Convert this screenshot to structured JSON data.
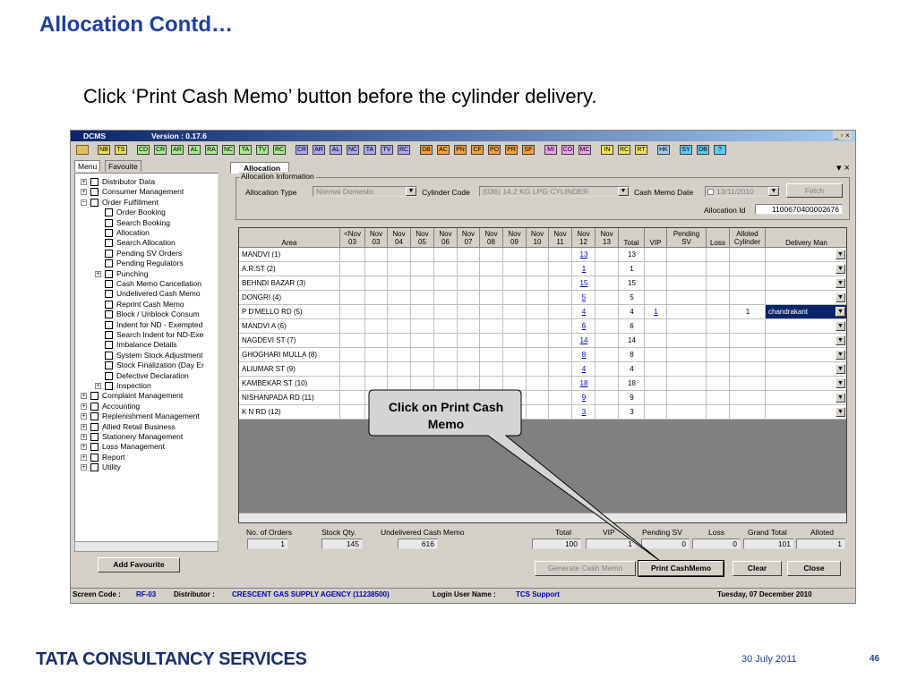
{
  "slide": {
    "title": "Allocation Contd…",
    "instruction": "Click ‘Print Cash Memo’ button before the cylinder delivery.",
    "brand": "TATA CONSULTANCY SERVICES",
    "date": "30 July 2011",
    "page": "46",
    "callout": "Click on Print Cash Memo"
  },
  "app": {
    "name": "DCMS",
    "version": "Version : 0.17.6",
    "toolbar": [
      [
        "NB",
        "TS"
      ],
      [
        "CD",
        "CR",
        "AR",
        "AL",
        "RA",
        "NC",
        "TA",
        "TV",
        "RC"
      ],
      [
        "CR",
        "AR",
        "AL",
        "NC",
        "TA",
        "TV",
        "RC"
      ],
      [
        "DB",
        "AC",
        "PN",
        "CF",
        "PO",
        "PR",
        "SF"
      ],
      [
        "MI",
        "CO",
        "MC"
      ],
      [
        "IN",
        "RC",
        "RT"
      ],
      [
        "HK"
      ],
      [
        "SY",
        "DB",
        "?"
      ]
    ],
    "side_tabs": [
      "Menu",
      "Favouite"
    ],
    "tree": [
      {
        "label": "Distributor Data",
        "level": 0,
        "expander": "+"
      },
      {
        "label": "Consumer Management",
        "level": 0,
        "expander": "+"
      },
      {
        "label": "Order Fulfillment",
        "level": 0,
        "expander": "-"
      },
      {
        "label": "Order Booking",
        "level": 1
      },
      {
        "label": "Search Booking",
        "level": 1
      },
      {
        "label": "Allocation",
        "level": 1
      },
      {
        "label": "Search Allocation",
        "level": 1
      },
      {
        "label": "Pending SV Orders",
        "level": 1
      },
      {
        "label": "Pending Regulators",
        "level": 1
      },
      {
        "label": "Punching",
        "level": 1,
        "expander": "+"
      },
      {
        "label": "Cash Memo Cancellation",
        "level": 1
      },
      {
        "label": "Undelivered Cash Memo",
        "level": 1
      },
      {
        "label": "Reprint Cash Memo",
        "level": 1
      },
      {
        "label": "Block / Unblock Consum",
        "level": 1
      },
      {
        "label": "Indent for ND - Exempted",
        "level": 1
      },
      {
        "label": "Search Indent for ND-Exe",
        "level": 1
      },
      {
        "label": "Imbalance Details",
        "level": 1
      },
      {
        "label": "System Stock Adjustment",
        "level": 1
      },
      {
        "label": "Stock Finalization (Day Er",
        "level": 1
      },
      {
        "label": "Defective Declaration",
        "level": 1
      },
      {
        "label": "Inspection",
        "level": 1,
        "expander": "+"
      },
      {
        "label": "Complaint Management",
        "level": 0,
        "expander": "+"
      },
      {
        "label": "Accounting",
        "level": 0,
        "expander": "+"
      },
      {
        "label": "Replenishment Management",
        "level": 0,
        "expander": "+"
      },
      {
        "label": "Allied Retail Business",
        "level": 0,
        "expander": "+"
      },
      {
        "label": "Stationery Management",
        "level": 0,
        "expander": "+"
      },
      {
        "label": "Loss Management",
        "level": 0,
        "expander": "+"
      },
      {
        "label": "Report",
        "level": 0,
        "expander": "+"
      },
      {
        "label": "Utility",
        "level": 0,
        "expander": "+"
      }
    ],
    "add_favourite": "Add Favourite",
    "window_tab": "Allocation",
    "group_label": "Allocation Information",
    "fields": {
      "allocation_type_label": "Allocation Type",
      "allocation_type": "Normal Domestic",
      "cylinder_code_label": "Cylinder Code",
      "cylinder_code": "(036) 14.2 KG LPG CYLINDER",
      "cash_memo_date_label": "Cash Memo Date",
      "cash_memo_date": "13/11/2010",
      "fetch": "Fetch",
      "allocation_id_label": "Allocation Id",
      "allocation_id": "1100670400002676"
    },
    "table": {
      "headers": [
        [
          "Area"
        ],
        [
          "<Nov",
          "03"
        ],
        [
          "Nov",
          "03"
        ],
        [
          "Nov",
          "04"
        ],
        [
          "Nov",
          "05"
        ],
        [
          "Nov",
          "06"
        ],
        [
          "Nov",
          "07"
        ],
        [
          "Nov",
          "08"
        ],
        [
          "Nov",
          "09"
        ],
        [
          "Nov",
          "10"
        ],
        [
          "Nov",
          "11"
        ],
        [
          "Nov",
          "12"
        ],
        [
          "Nov",
          "13"
        ],
        [
          "Total"
        ],
        [
          "VIP"
        ],
        [
          "Pending",
          "SV"
        ],
        [
          "Loss"
        ],
        [
          "Alloted",
          "Cylinder"
        ],
        [
          "Delivery Man"
        ]
      ],
      "rows": [
        {
          "area": "MANDVI (1)",
          "nov12": 13,
          "total": 13
        },
        {
          "area": "A.R.ST (2)",
          "nov12": 1,
          "total": 1
        },
        {
          "area": "BEHNDI BAZAR (3)",
          "nov12": 15,
          "total": 15
        },
        {
          "area": "DONGRI (4)",
          "nov12": 5,
          "total": 5
        },
        {
          "area": "P D'MELLO RD (5)",
          "nov12": 4,
          "total": 4,
          "vip": 1,
          "alloted": 1,
          "delivery_man": "chandrakant"
        },
        {
          "area": "MANDVI A (6)",
          "nov12": 6,
          "total": 6
        },
        {
          "area": "NAGDEVI ST (7)",
          "nov12": 14,
          "total": 14
        },
        {
          "area": "GHOGHARI MULLA (8)",
          "nov12": 8,
          "total": 8
        },
        {
          "area": "ALIUMAR ST (9)",
          "nov12": 4,
          "total": 4
        },
        {
          "area": "KAMBEKAR ST (10)",
          "nov12": 18,
          "total": 18
        },
        {
          "area": "NISHANPADA RD (11)",
          "nov12": 9,
          "total": 9
        },
        {
          "area": "K N RD (12)",
          "nov12": 3,
          "total": 3
        }
      ]
    },
    "summary": [
      {
        "label": "No. of Orders",
        "value": 1
      },
      {
        "label": "Stock Qty.",
        "value": 145
      },
      {
        "label": "Undelivered Cash Memo",
        "value": 616
      },
      {
        "label": "Total",
        "value": 100
      },
      {
        "label": "VIP",
        "value": 1
      },
      {
        "label": "Pending SV",
        "value": 0
      },
      {
        "label": "Loss",
        "value": 0
      },
      {
        "label": "Grand Total",
        "value": 101
      },
      {
        "label": "Alloted",
        "value": 1
      }
    ],
    "buttons": [
      "Generate Cash Memo",
      "Print CashMemo",
      "Clear",
      "Close"
    ],
    "status": {
      "screen_code_label": "Screen Code :",
      "screen_code": "RF-03",
      "distributor_label": "Distributor :",
      "distributor": "CRESCENT GAS SUPPLY AGENCY (11238500)",
      "user_label": "Login User Name :",
      "user": "TCS Support",
      "date": "Tuesday, 07 December 2010"
    }
  }
}
